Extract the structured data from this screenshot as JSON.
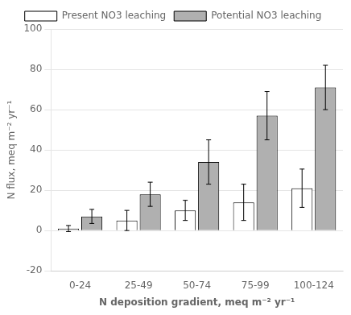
{
  "chart_data": {
    "type": "bar",
    "categories": [
      "0-24",
      "25-49",
      "50-74",
      "75-99",
      "100-124"
    ],
    "series": [
      {
        "name": "Present NO3 leaching",
        "color": "#ffffff",
        "values": [
          1.0,
          5.0,
          10.0,
          14.0,
          21.0
        ],
        "errors": [
          1.5,
          5.0,
          5.0,
          9.0,
          9.5
        ]
      },
      {
        "name": "Potential NO3 leaching",
        "color": "#b0b0b0",
        "values": [
          7.0,
          18.0,
          34.0,
          57.0,
          71.0
        ],
        "errors": [
          3.5,
          6.0,
          11.0,
          12.0,
          11.0
        ]
      }
    ],
    "xlabel": "N deposition gradient, meq m⁻² yr⁻¹",
    "ylabel": "N flux, meq m⁻² yr⁻¹",
    "ylim": [
      -20,
      100
    ],
    "yticks": [
      -20,
      0,
      20,
      40,
      60,
      80,
      100
    ],
    "grid": true,
    "legend": "top"
  }
}
